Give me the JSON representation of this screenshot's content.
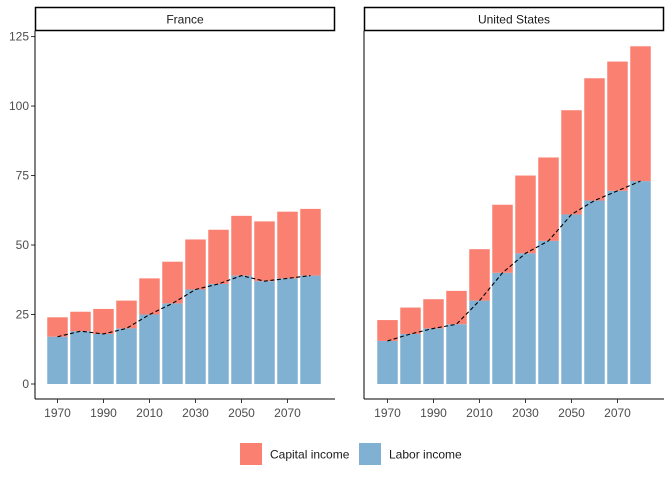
{
  "chart_data": {
    "type": "bar",
    "stacked": true,
    "x_tick_labels": [
      "1970",
      "1990",
      "2010",
      "2030",
      "2050",
      "2070"
    ],
    "y_tick_labels": [
      "0",
      "25",
      "50",
      "75",
      "100",
      "125"
    ],
    "ylim": [
      0,
      127
    ],
    "legend": {
      "position": "bottom",
      "entries": [
        {
          "name": "Capital income",
          "color": "#FA8072"
        },
        {
          "name": "Labor income",
          "color": "#80B1D3"
        }
      ]
    },
    "line_style": "dashed black line tracing labor income",
    "panels": [
      {
        "title": "France",
        "x": [
          1970,
          1980,
          1990,
          2000,
          2010,
          2020,
          2030,
          2040,
          2050,
          2060,
          2070,
          2080
        ],
        "series": [
          {
            "name": "Labor income",
            "values": [
              17,
              19,
              18,
              20,
              25,
              29,
              34,
              36,
              39,
              37,
              38,
              39
            ]
          },
          {
            "name": "Capital income",
            "values": [
              7,
              7,
              9,
              10,
              13,
              15,
              18,
              19.5,
              21.5,
              21.5,
              24,
              24
            ]
          }
        ]
      },
      {
        "title": "United States",
        "x": [
          1970,
          1980,
          1990,
          2000,
          2010,
          2020,
          2030,
          2040,
          2050,
          2060,
          2070,
          2080
        ],
        "series": [
          {
            "name": "Labor income",
            "values": [
              15.5,
              18,
              20,
              21.5,
              30,
              40,
              47,
              51.5,
              61,
              66,
              69.5,
              73
            ]
          },
          {
            "name": "Capital income",
            "values": [
              7.5,
              9.5,
              10.5,
              12,
              18.5,
              24.5,
              28,
              30,
              37.5,
              44,
              46.5,
              48.5
            ]
          }
        ]
      }
    ]
  }
}
